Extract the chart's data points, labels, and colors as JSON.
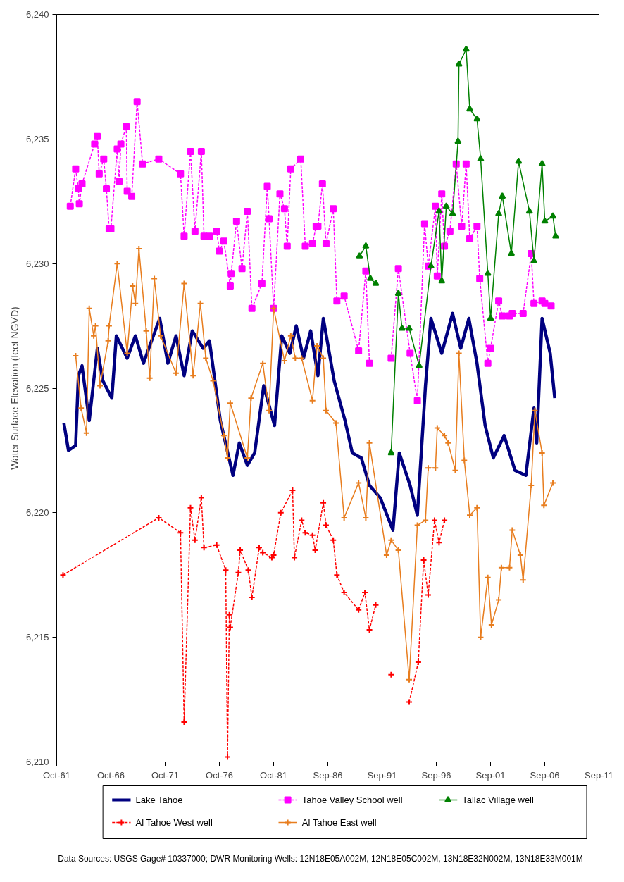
{
  "chart_data": {
    "type": "line",
    "ylabel": "Water Surface Elevation (feet NGVD)",
    "annotations": [
      "Data Sources:  USGS Gage# 10337000; DWR Monitoring Wells:  12N18E05A002M, 12N18E05C002M, 13N18E32N002M, 13N18E33M001M"
    ],
    "xlim": [
      "1961-10-01",
      "2011-09-30"
    ],
    "xticks": [
      {
        "value": "1961-10-01",
        "label": "Oct-61"
      },
      {
        "value": "1966-10-01",
        "label": "Oct-66"
      },
      {
        "value": "1971-10-01",
        "label": "Oct-71"
      },
      {
        "value": "1976-10-01",
        "label": "Oct-76"
      },
      {
        "value": "1981-10-01",
        "label": "Oct-81"
      },
      {
        "value": "1986-09-30",
        "label": "Sep-86"
      },
      {
        "value": "1991-09-30",
        "label": "Sep-91"
      },
      {
        "value": "1996-09-30",
        "label": "Sep-96"
      },
      {
        "value": "2001-09-30",
        "label": "Sep-01"
      },
      {
        "value": "2006-09-30",
        "label": "Sep-06"
      },
      {
        "value": "2011-09-30",
        "label": "Sep-11"
      }
    ],
    "ylim": [
      6210,
      6240
    ],
    "yticks": [
      {
        "value": 6210,
        "label": "6,210"
      },
      {
        "value": 6215,
        "label": "6,215"
      },
      {
        "value": 6220,
        "label": "6,220"
      },
      {
        "value": 6225,
        "label": "6,225"
      },
      {
        "value": 6230,
        "label": "6,230"
      },
      {
        "value": 6235,
        "label": "6,235"
      },
      {
        "value": 6240,
        "label": "6,240"
      }
    ],
    "grid": false,
    "legend": "bottom",
    "series": [
      {
        "name": "Lake Tahoe",
        "color": "#000080",
        "marker": "none",
        "line_style": "solid",
        "x": [
          "1962-06",
          "1962-11",
          "1963-07",
          "1963-10",
          "1964-02",
          "1964-10",
          "1965-07",
          "1966-01",
          "1966-11",
          "1967-04",
          "1968-04",
          "1969-01",
          "1969-10",
          "1970-07",
          "1971-04",
          "1972-01",
          "1972-10",
          "1973-07",
          "1974-04",
          "1975-04",
          "1975-11",
          "1976-11",
          "1978-01",
          "1978-08",
          "1979-05",
          "1980-01",
          "1980-11",
          "1981-11",
          "1982-07",
          "1983-04",
          "1983-11",
          "1984-07",
          "1985-03",
          "1985-11",
          "1986-05",
          "1987-05",
          "1988-05",
          "1989-01",
          "1989-11",
          "1990-08",
          "1991-08",
          "1992-10",
          "1993-05",
          "1994-05",
          "1995-01",
          "1995-10",
          "1996-04",
          "1997-04",
          "1998-04",
          "1999-01",
          "1999-10",
          "2000-07",
          "2001-04",
          "2002-01",
          "2003-01",
          "2004-01",
          "2005-01",
          "2005-10",
          "2006-01",
          "2006-07",
          "2007-04",
          "2007-09"
        ],
        "values": [
          6223.6,
          6222.5,
          6222.7,
          6225.5,
          6225.9,
          6223.7,
          6226.6,
          6225.3,
          6224.6,
          6227.1,
          6226.2,
          6227.1,
          6226.0,
          6226.9,
          6227.8,
          6226.0,
          6227.1,
          6225.5,
          6227.3,
          6226.6,
          6226.9,
          6223.7,
          6221.5,
          6222.8,
          6221.9,
          6222.4,
          6225.1,
          6223.5,
          6227.1,
          6226.4,
          6227.5,
          6226.2,
          6227.3,
          6225.5,
          6227.8,
          6225.3,
          6223.7,
          6222.4,
          6222.2,
          6221.1,
          6220.6,
          6219.3,
          6222.4,
          6221.1,
          6219.9,
          6225.1,
          6227.8,
          6226.4,
          6228.0,
          6226.6,
          6227.8,
          6226.0,
          6223.5,
          6222.2,
          6223.1,
          6221.7,
          6221.5,
          6224.2,
          6222.8,
          6227.8,
          6226.4,
          6224.6
        ]
      },
      {
        "name": "Tahoe Valley School well",
        "color": "#ff00ff",
        "marker": "square",
        "line_style": "dashed",
        "x": [
          "1963-01",
          "1963-07",
          "1963-10",
          "1963-11",
          "1964-02",
          "1965-04",
          "1965-07",
          "1965-09",
          "1966-02",
          "1966-05",
          "1966-08",
          "1966-10",
          "1967-05",
          "1967-07",
          "1967-09",
          "1968-03",
          "1968-04",
          "1968-09",
          "1969-03",
          "1969-09",
          "1971-03",
          "1973-03",
          "1973-07",
          "1974-02",
          "1974-07",
          "1975-02",
          "1975-05",
          "1975-11",
          "1976-07",
          "1976-10",
          "1977-03",
          "1977-10",
          "1977-11",
          "1978-05",
          "1978-11",
          "1979-05",
          "1979-10",
          "1980-09",
          "1981-03",
          "1981-05",
          "1981-10",
          "1982-05",
          "1982-10",
          "1983-01",
          "1983-05",
          "1984-04",
          "1984-09",
          "1985-05",
          "1985-09",
          "1985-11",
          "1986-04",
          "1986-08",
          "1987-04",
          "1987-08",
          "1988-04",
          "1989-08",
          "1990-04",
          "1990-08",
          "1991-09",
          "1992-08",
          "1993-04",
          "1994-05",
          "1995-01",
          "1995-09",
          "1996-01",
          "1996-09",
          "1996-11",
          "1997-04",
          "1997-07",
          "1998-01",
          "1998-08",
          "1999-02",
          "1999-07",
          "1999-11",
          "2000-07",
          "2000-10",
          "2001-07",
          "2001-10",
          "2002-07",
          "2002-11",
          "2003-07",
          "2003-10",
          "2004-10",
          "2005-07",
          "2005-10",
          "2006-07",
          "2006-10",
          "2007-05"
        ],
        "values": [
          6232.3,
          6233.8,
          6233.0,
          6232.4,
          6233.2,
          6234.8,
          6235.1,
          6233.6,
          6234.2,
          6233.0,
          6231.4,
          6231.4,
          6234.6,
          6233.3,
          6234.8,
          6235.5,
          6232.9,
          6232.7,
          6236.5,
          6234.0,
          6234.2,
          6233.6,
          6231.1,
          6234.5,
          6231.3,
          6234.5,
          6231.1,
          6231.1,
          6231.3,
          6230.5,
          6230.9,
          6229.1,
          6229.6,
          6231.7,
          6229.8,
          6232.1,
          6228.2,
          6229.2,
          6233.1,
          6231.8,
          6228.2,
          6232.8,
          6232.2,
          6230.7,
          6233.8,
          6234.2,
          6230.7,
          6230.8,
          6231.5,
          6231.5,
          6233.2,
          6230.8,
          6232.2,
          6228.5,
          6228.7,
          6226.5,
          6229.7,
          6226.0,
          null,
          6226.2,
          6229.8,
          6226.4,
          6224.5,
          6231.6,
          6229.9,
          6232.3,
          6229.5,
          6232.8,
          6230.7,
          6231.3,
          6234.0,
          6231.5,
          6234.0,
          6231.0,
          6231.5,
          6229.4,
          6226.0,
          6226.6,
          6228.5,
          6227.9,
          6227.9,
          6228.0,
          6228.0,
          6230.4,
          6228.4,
          6228.5,
          6228.4,
          6228.3
        ]
      },
      {
        "name": "Tallac Village well",
        "color": "#008000",
        "marker": "triangle",
        "line_style": "solid",
        "x": [
          "1989-09",
          "1990-04",
          "1990-09",
          "1991-03",
          "1991-09",
          "1992-08",
          "1993-04",
          "1993-08",
          "1994-04",
          "1995-03",
          "1996-04",
          "1997-01",
          "1997-04",
          "1997-09",
          "1998-04",
          "1998-10",
          "1998-11",
          "1999-07",
          "1999-11",
          "2000-07",
          "2000-11",
          "2001-07",
          "2001-10",
          "2002-07",
          "2002-11",
          "2003-09",
          "2004-05",
          "2005-05",
          "2005-10",
          "2006-07",
          "2006-10",
          "2007-07",
          "2007-10"
        ],
        "values": [
          6230.3,
          6230.7,
          6229.4,
          6229.2,
          null,
          6222.4,
          6228.8,
          6227.4,
          6227.4,
          6225.9,
          6229.9,
          6232.1,
          6229.3,
          6232.3,
          6232.0,
          6234.9,
          6238.0,
          6238.6,
          6236.2,
          6235.8,
          6234.2,
          6229.6,
          6227.8,
          6232.0,
          6232.7,
          6230.4,
          6234.1,
          6232.1,
          6230.1,
          6234.0,
          6231.7,
          6231.9,
          6231.1
        ]
      },
      {
        "name": "Al Tahoe West well",
        "color": "#ff0000",
        "marker": "cross",
        "line_style": "dashed",
        "x": [
          "1962-05",
          "1971-03",
          "1973-03",
          "1973-07",
          "1974-02",
          "1974-07",
          "1975-02",
          "1975-05",
          "1976-07",
          "1977-05",
          "1977-07",
          "1977-09",
          "1977-10",
          "1978-07",
          "1978-09",
          "1979-06",
          "1979-10",
          "1980-06",
          "1980-10",
          "1981-08",
          "1981-10",
          "1982-06",
          "1983-07",
          "1983-09",
          "1984-05",
          "1984-09",
          "1985-05",
          "1985-08",
          "1986-05",
          "1986-08",
          "1987-04",
          "1987-08",
          "1988-04",
          "1989-08",
          "1990-03",
          "1990-08",
          "1991-03",
          "1991-09",
          "1992-08",
          "1993-06",
          "1994-04",
          "1995-02",
          "1995-08",
          "1996-01",
          "1996-08",
          "1997-01",
          "1997-07"
        ],
        "values": [
          6217.5,
          6219.8,
          6219.2,
          6211.6,
          6220.2,
          6218.9,
          6220.6,
          6218.6,
          6218.7,
          6217.7,
          6210.2,
          6215.9,
          6215.4,
          6217.6,
          6218.5,
          6217.7,
          6216.6,
          6218.6,
          6218.4,
          6218.2,
          6218.3,
          6220.0,
          6220.9,
          6218.2,
          6219.7,
          6219.2,
          6219.1,
          6218.5,
          6220.4,
          6219.5,
          6218.9,
          6217.5,
          6216.8,
          6216.1,
          6216.8,
          6215.3,
          6216.3,
          null,
          6213.5,
          null,
          6212.4,
          6214.0,
          6218.1,
          6216.7,
          6219.7,
          6218.8,
          6219.7
        ]
      },
      {
        "name": "Al Tahoe East well",
        "color": "#e87d1e",
        "marker": "cross",
        "line_style": "solid",
        "x": [
          "1963-07",
          "1964-01",
          "1964-07",
          "1964-10",
          "1965-03",
          "1965-05",
          "1965-10",
          "1966-07",
          "1966-08",
          "1967-05",
          "1968-04",
          "1968-10",
          "1969-01",
          "1969-05",
          "1970-01",
          "1970-05",
          "1970-10",
          "1971-05",
          "1972-10",
          "1973-07",
          "1974-05",
          "1975-01",
          "1975-07",
          "1976-03",
          "1977-03",
          "1977-07",
          "1977-10",
          "1979-05",
          "1979-09",
          "1980-10",
          "1981-05",
          "1981-10",
          "1982-10",
          "1983-05",
          "1983-10",
          "1984-05",
          "1985-05",
          "1985-10",
          "1986-05",
          "1986-08",
          "1987-07",
          "1988-04",
          "1989-08",
          "1990-04",
          "1990-08",
          "1992-03",
          "1992-08",
          "1993-04",
          "1994-04",
          "1995-01",
          "1995-10",
          "1996-01",
          "1996-09",
          "1996-11",
          "1997-07",
          "1997-11",
          "1998-07",
          "1998-11",
          "1999-05",
          "1999-11",
          "2000-07",
          "2000-11",
          "2001-07",
          "2001-11",
          "2002-07",
          "2002-10",
          "2003-07",
          "2003-10",
          "2004-07",
          "2004-10",
          "2005-07",
          "2005-11",
          "2006-07",
          "2006-09",
          "2007-07"
        ],
        "values": [
          6226.3,
          6224.2,
          6223.2,
          6228.2,
          6227.1,
          6227.5,
          6225.1,
          6226.9,
          6227.5,
          6230.0,
          6226.4,
          6229.1,
          6228.4,
          6230.6,
          6227.3,
          6225.4,
          6229.4,
          6227.1,
          6225.6,
          6229.2,
          6225.5,
          6228.4,
          6226.2,
          6225.3,
          6223.1,
          6222.2,
          6224.4,
          6222.2,
          6224.6,
          6226.0,
          6224.1,
          6228.2,
          6226.1,
          6227.1,
          6226.2,
          6226.2,
          6224.5,
          6226.7,
          6226.2,
          6224.1,
          6223.6,
          6219.8,
          6221.2,
          6219.8,
          6222.8,
          6218.3,
          6218.9,
          6218.5,
          6213.3,
          6219.5,
          6219.7,
          6221.8,
          6221.8,
          6223.4,
          6223.1,
          6222.8,
          6221.7,
          6226.4,
          6222.1,
          6219.9,
          6220.2,
          6215.0,
          6217.4,
          6215.5,
          6216.5,
          6217.8,
          6217.8,
          6219.3,
          6218.3,
          6217.3,
          6221.1,
          6224.1,
          6222.4,
          6220.3,
          6221.2
        ]
      }
    ]
  }
}
